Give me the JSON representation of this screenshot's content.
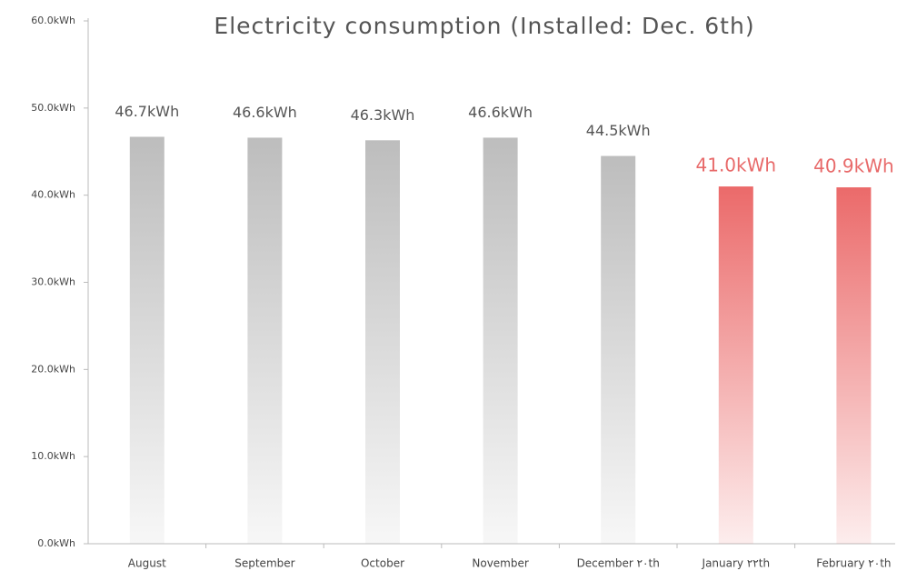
{
  "chart_data": {
    "type": "bar",
    "title": "Electricity consumption (Installed: Dec. 6th)",
    "categories": [
      "August",
      "September",
      "October",
      "November",
      "December ٢٠th",
      "January ٢٢th",
      "February ٢٠th"
    ],
    "values": [
      46.7,
      46.6,
      46.3,
      46.6,
      44.5,
      41.0,
      40.9
    ],
    "value_labels": [
      "46.7kWh",
      "46.6kWh",
      "46.3kWh",
      "46.6kWh",
      "44.5kWh",
      "41.0kWh",
      "40.9kWh"
    ],
    "colors": [
      "#bdbdbd",
      "#bdbdbd",
      "#bdbdbd",
      "#bdbdbd",
      "#bdbdbd",
      "#eb6a6a",
      "#eb6a6a"
    ],
    "label_colors": [
      "#555555",
      "#555555",
      "#555555",
      "#555555",
      "#555555",
      "#e86a6a",
      "#e86a6a"
    ],
    "ylim": [
      0,
      60
    ],
    "yticks": [
      {
        "value": 0,
        "label": "0.0kWh"
      },
      {
        "value": 10,
        "label": "10.0kWh"
      },
      {
        "value": 20,
        "label": "20.0kWh"
      },
      {
        "value": 30,
        "label": "30.0kWh"
      },
      {
        "value": 40,
        "label": "40.0kWh"
      },
      {
        "value": 50,
        "label": "50.0kWh"
      },
      {
        "value": 60,
        "label": "60.0kWh"
      }
    ],
    "grid": false
  }
}
